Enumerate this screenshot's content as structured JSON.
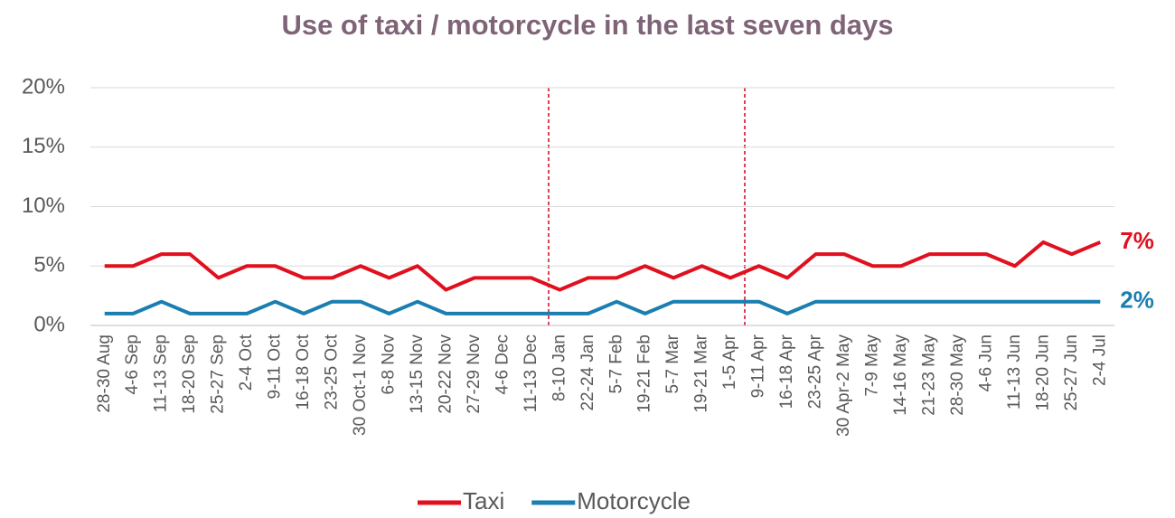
{
  "chart_data": {
    "type": "line",
    "title": "Use of taxi / motorcycle in the last seven days",
    "categories": [
      "28-30 Aug",
      "4-6 Sep",
      "11-13 Sep",
      "18-20 Sep",
      "25-27 Sep",
      "2-4 Oct",
      "9-11 Oct",
      "16-18 Oct",
      "23-25 Oct",
      "30 Oct-1 Nov",
      "6-8 Nov",
      "13-15 Nov",
      "20-22 Nov",
      "27-29 Nov",
      "4-6 Dec",
      "11-13 Dec",
      "8-10 Jan",
      "22-24 Jan",
      "5-7 Feb",
      "19-21 Feb",
      "5-7 Mar",
      "19-21 Mar",
      "1-5 Apr",
      "9-11 Apr",
      "16-18 Apr",
      "23-25 Apr",
      "30 Apr-2 May",
      "7-9 May",
      "14-16 May",
      "21-23 May",
      "28-30 May",
      "4-6 Jun",
      "11-13 Jun",
      "18-20 Jun",
      "25-27 Jun",
      "2-4 Jul"
    ],
    "series": [
      {
        "name": "Taxi",
        "color": "#e0101e",
        "values": [
          5,
          5,
          6,
          6,
          4,
          5,
          5,
          4,
          4,
          5,
          4,
          5,
          3,
          4,
          4,
          4,
          3,
          4,
          4,
          5,
          4,
          5,
          4,
          5,
          4,
          6,
          6,
          5,
          5,
          6,
          6,
          6,
          5,
          7,
          6,
          7
        ],
        "value_labels": [
          null,
          null,
          null,
          null,
          null,
          null,
          null,
          null,
          null,
          null,
          null,
          null,
          null,
          null,
          null,
          null,
          null,
          null,
          null,
          null,
          null,
          null,
          null,
          null,
          null,
          null,
          null,
          null,
          null,
          null,
          null,
          null,
          null,
          null,
          null,
          "7%"
        ]
      },
      {
        "name": "Motorcycle",
        "color": "#1a7fb0",
        "values": [
          1,
          1,
          2,
          1,
          1,
          1,
          2,
          1,
          2,
          2,
          1,
          2,
          1,
          1,
          1,
          1,
          1,
          1,
          2,
          1,
          2,
          2,
          2,
          2,
          1,
          2,
          2,
          2,
          2,
          2,
          2,
          2,
          2,
          2,
          2,
          2
        ],
        "value_labels": [
          null,
          null,
          null,
          null,
          null,
          null,
          null,
          null,
          null,
          null,
          null,
          null,
          null,
          null,
          null,
          null,
          null,
          null,
          null,
          null,
          null,
          null,
          null,
          null,
          null,
          null,
          null,
          null,
          null,
          null,
          null,
          null,
          null,
          null,
          null,
          "2%"
        ]
      }
    ],
    "ylim": [
      0,
      20
    ],
    "yticks": [
      {
        "value": 0,
        "label": "0%"
      },
      {
        "value": 5,
        "label": "5%"
      },
      {
        "value": 10,
        "label": "10%"
      },
      {
        "value": 15,
        "label": "15%"
      },
      {
        "value": 20,
        "label": "20%"
      }
    ],
    "grid": true
  }
}
